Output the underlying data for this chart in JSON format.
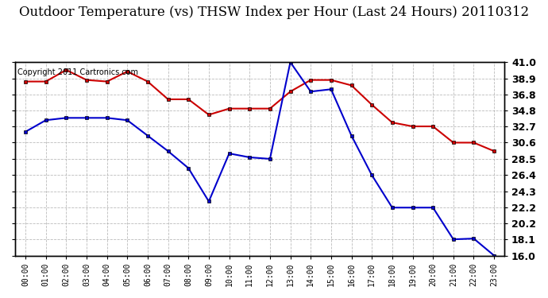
{
  "title": "Outdoor Temperature (vs) THSW Index per Hour (Last 24 Hours) 20110312",
  "copyright_text": "Copyright 2011 Cartronics.com",
  "hours": [
    "00:00",
    "01:00",
    "02:00",
    "03:00",
    "04:00",
    "05:00",
    "06:00",
    "07:00",
    "08:00",
    "09:00",
    "10:00",
    "11:00",
    "12:00",
    "13:00",
    "14:00",
    "15:00",
    "16:00",
    "17:00",
    "18:00",
    "19:00",
    "20:00",
    "21:00",
    "22:00",
    "23:00"
  ],
  "temp_red": [
    38.5,
    38.5,
    40.0,
    38.7,
    38.5,
    39.8,
    38.5,
    36.2,
    36.2,
    34.2,
    35.0,
    35.0,
    35.0,
    37.2,
    38.7,
    38.7,
    38.0,
    35.5,
    33.2,
    32.7,
    32.7,
    30.6,
    30.6,
    29.5
  ],
  "temp_blue": [
    32.0,
    33.5,
    33.8,
    33.8,
    33.8,
    33.5,
    31.5,
    29.5,
    27.3,
    23.0,
    29.2,
    28.7,
    28.5,
    41.0,
    37.2,
    37.5,
    31.5,
    26.4,
    22.2,
    22.2,
    22.2,
    18.1,
    18.2,
    16.0
  ],
  "ylim": [
    16.0,
    41.0
  ],
  "yticks": [
    16.0,
    18.1,
    20.2,
    22.2,
    24.3,
    26.4,
    28.5,
    30.6,
    32.7,
    34.8,
    36.8,
    38.9,
    41.0
  ],
  "ytick_labels": [
    "16.0",
    "18.1",
    "20.2",
    "22.2",
    "24.3",
    "26.4",
    "28.5",
    "30.6",
    "32.7",
    "34.8",
    "36.8",
    "38.9",
    "41.0"
  ],
  "red_color": "#cc0000",
  "blue_color": "#0000cc",
  "bg_color": "#ffffff",
  "grid_color": "#aaaaaa",
  "title_fontsize": 12,
  "copyright_fontsize": 7,
  "tick_fontsize": 9
}
